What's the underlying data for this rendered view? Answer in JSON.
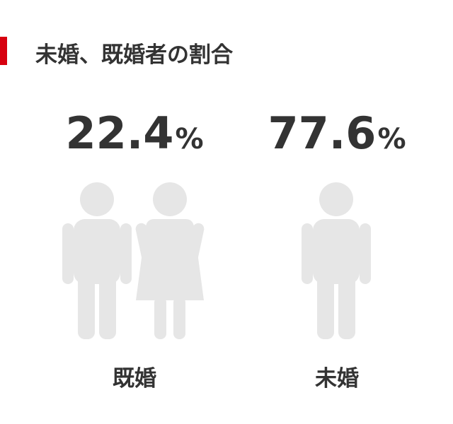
{
  "chart_data": {
    "type": "pictogram",
    "title": "未婚、既婚者の割合",
    "categories": [
      "既婚",
      "未婚"
    ],
    "values": [
      22.4,
      77.6
    ],
    "unit": "%",
    "color": "#333333",
    "icon_color": "#e6e6e6",
    "accent_color": "#d7000f"
  }
}
